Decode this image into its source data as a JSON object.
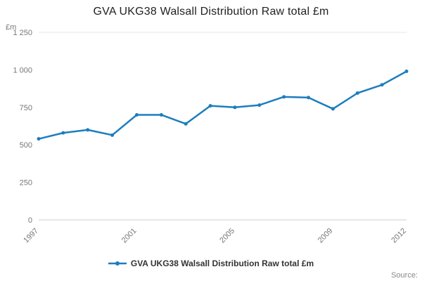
{
  "title": "GVA UKG38 Walsall Distribution Raw total £m",
  "source_label": "Source:",
  "legend": {
    "label": "GVA UKG38 Walsall Distribution Raw total £m",
    "color": "#1d7dbe"
  },
  "chart_data": {
    "type": "line",
    "title": "GVA UKG38 Walsall Distribution Raw total £m",
    "unit_label": "£m",
    "x": [
      1997,
      1998,
      1999,
      2000,
      2001,
      2002,
      2003,
      2004,
      2005,
      2006,
      2007,
      2008,
      2009,
      2010,
      2011,
      2012
    ],
    "series": [
      {
        "name": "GVA UKG38 Walsall Distribution Raw total £m",
        "color": "#1d7dbe",
        "values": [
          540,
          580,
          600,
          565,
          700,
          700,
          640,
          760,
          750,
          765,
          820,
          815,
          740,
          845,
          900,
          990
        ]
      }
    ],
    "ylim": [
      0,
      1250
    ],
    "yticks": [
      0,
      250,
      500,
      750,
      1000,
      1250
    ],
    "ytick_labels": [
      "0",
      "250",
      "500",
      "750",
      "1 000",
      "1 250"
    ],
    "xtick_labels_shown": [
      "1997",
      "2001",
      "2005",
      "2009",
      "2012"
    ],
    "grid": "top-border-only",
    "legend_position": "bottom",
    "colors": {
      "axis_line": "#cccccc",
      "grid_line": "#e6e6e6",
      "tick_text": "#777777"
    }
  }
}
